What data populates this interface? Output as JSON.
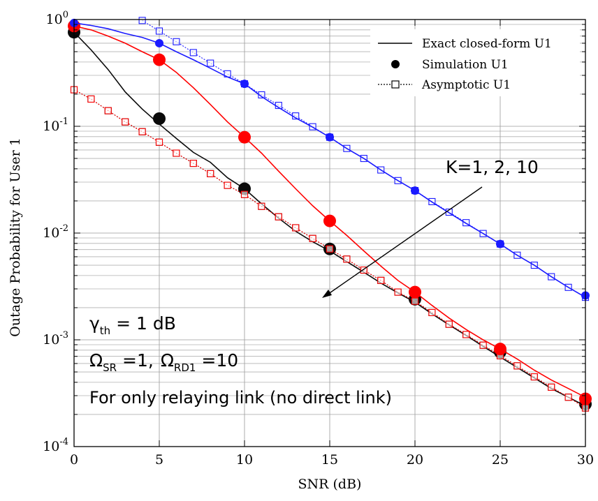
{
  "chart_data": {
    "type": "line",
    "xlabel": "SNR (dB)",
    "ylabel": "Outage Probability for User 1",
    "xlim": [
      0,
      30
    ],
    "ylim": [
      0.0001,
      1
    ],
    "yscale": "log",
    "grid": true,
    "legend_position": "top-right",
    "x_ticks": [
      0,
      5,
      10,
      15,
      20,
      25,
      30
    ],
    "y_ticks": [
      {
        "value": 1,
        "base": "10",
        "exp": "0"
      },
      {
        "value": 0.1,
        "base": "10",
        "exp": "-1"
      },
      {
        "value": 0.01,
        "base": "10",
        "exp": "-2"
      },
      {
        "value": 0.001,
        "base": "10",
        "exp": "-3"
      },
      {
        "value": 0.0001,
        "base": "10",
        "exp": "-4"
      }
    ],
    "legend": [
      {
        "label": "Exact closed-form U1",
        "style": "line"
      },
      {
        "label": "Simulation U1",
        "style": "dot"
      },
      {
        "label": "Asymptotic U1",
        "style": "square"
      }
    ],
    "annotations": {
      "k_label": "K=1, 2, 10",
      "gamma_sym": "γ",
      "gamma_sub": "th",
      "gamma_rest": " = 1 dB",
      "omega1_sym": "Ω",
      "omega1_sub": "SR",
      "omega1_rest": " =1,",
      "omega2_sym": "Ω",
      "omega2_sub": "RD1",
      "omega2_rest": " =10",
      "relay_note": "For only relaying link (no direct link)"
    },
    "series": [
      {
        "color": "#0a0a0a",
        "exact": {
          "x": [
            0,
            1,
            2,
            3,
            4,
            5,
            6,
            7,
            8,
            9,
            10,
            11,
            12,
            13,
            14,
            15,
            16,
            17,
            18,
            19,
            20,
            21,
            22,
            23,
            24,
            25,
            26,
            27,
            28,
            29,
            30
          ],
          "y": [
            0.76,
            0.52,
            0.34,
            0.21,
            0.145,
            0.105,
            0.077,
            0.057,
            0.046,
            0.033,
            0.026,
            0.0188,
            0.0138,
            0.0104,
            0.0083,
            0.0068,
            0.0054,
            0.0043,
            0.0034,
            0.00275,
            0.00225,
            0.00175,
            0.00138,
            0.0011,
            0.00087,
            0.00069,
            0.00055,
            0.00044,
            0.00035,
            0.00029,
            0.00024
          ]
        },
        "simulation": {
          "x": [
            0,
            5,
            10,
            15,
            20,
            25,
            30
          ],
          "y": [
            0.76,
            0.118,
            0.026,
            0.0071,
            0.0024,
            0.00077,
            0.00025
          ]
        },
        "asymptotic": {
          "x": [
            0,
            1,
            2,
            3,
            4,
            5,
            6,
            7,
            8,
            9,
            10,
            11,
            12,
            13,
            14,
            15,
            16,
            17,
            18,
            19,
            20,
            21,
            22,
            23,
            24,
            25,
            26,
            27,
            28,
            29,
            30
          ],
          "y": [
            0.22,
            0.18,
            0.14,
            0.11,
            0.089,
            0.071,
            0.056,
            0.045,
            0.036,
            0.028,
            0.023,
            0.0178,
            0.0142,
            0.0112,
            0.0089,
            0.0071,
            0.0057,
            0.0045,
            0.0036,
            0.0028,
            0.0023,
            0.0018,
            0.0014,
            0.00112,
            0.00089,
            0.00071,
            0.00057,
            0.00045,
            0.00036,
            0.00029,
            0.00023
          ]
        }
      },
      {
        "color": "#ff0000",
        "exact": {
          "x": [
            0,
            1,
            2,
            3,
            4,
            5,
            6,
            7,
            8,
            9,
            10,
            11,
            12,
            13,
            14,
            15,
            16,
            17,
            18,
            19,
            20,
            21,
            22,
            23,
            24,
            25,
            26,
            27,
            28,
            29,
            30
          ],
          "y": [
            0.87,
            0.8,
            0.7,
            0.6,
            0.5,
            0.42,
            0.32,
            0.23,
            0.16,
            0.11,
            0.079,
            0.056,
            0.038,
            0.026,
            0.018,
            0.013,
            0.0095,
            0.0068,
            0.0049,
            0.0036,
            0.0028,
            0.0021,
            0.0016,
            0.00125,
            0.001,
            0.00082,
            0.00066,
            0.00052,
            0.00042,
            0.00035,
            0.00029
          ]
        },
        "simulation": {
          "x": [
            0,
            5,
            10,
            15,
            20,
            25,
            30
          ],
          "y": [
            0.87,
            0.42,
            0.079,
            0.013,
            0.0028,
            0.00082,
            0.00028
          ]
        },
        "asymptotic": {
          "x": [
            0,
            1,
            2,
            3,
            4,
            5,
            6,
            7,
            8,
            9,
            10,
            11,
            12,
            13,
            14,
            15,
            16,
            17,
            18,
            19,
            20,
            21,
            22,
            23,
            24,
            25,
            26,
            27,
            28,
            29,
            30
          ],
          "y": [
            0.22,
            0.18,
            0.14,
            0.11,
            0.089,
            0.071,
            0.056,
            0.045,
            0.036,
            0.028,
            0.023,
            0.0178,
            0.0142,
            0.0112,
            0.0089,
            0.0071,
            0.0057,
            0.0045,
            0.0036,
            0.0028,
            0.0023,
            0.0018,
            0.0014,
            0.00112,
            0.00089,
            0.00071,
            0.00057,
            0.00045,
            0.00036,
            0.00029,
            0.00023
          ]
        }
      },
      {
        "color": "#1a1aff",
        "exact": {
          "x": [
            0,
            1,
            2,
            3,
            4,
            5,
            6,
            7,
            8,
            9,
            10,
            11,
            12,
            13,
            14,
            15,
            16,
            17,
            18,
            19,
            20,
            21,
            22,
            23,
            24,
            25,
            26,
            27,
            28,
            29,
            30
          ],
          "y": [
            0.93,
            0.88,
            0.82,
            0.74,
            0.68,
            0.6,
            0.5,
            0.42,
            0.35,
            0.29,
            0.25,
            0.19,
            0.15,
            0.12,
            0.098,
            0.079,
            0.062,
            0.05,
            0.039,
            0.031,
            0.025,
            0.0195,
            0.0155,
            0.0123,
            0.0099,
            0.0079,
            0.0062,
            0.005,
            0.0039,
            0.0031,
            0.0025
          ]
        },
        "simulation": {
          "x": [
            0,
            5,
            10,
            15,
            20,
            25,
            30
          ],
          "y": [
            0.93,
            0.6,
            0.25,
            0.079,
            0.025,
            0.0079,
            0.0026
          ]
        },
        "asymptotic": {
          "x": [
            4,
            5,
            6,
            7,
            8,
            9,
            10,
            11,
            12,
            13,
            14,
            15,
            16,
            17,
            18,
            19,
            20,
            21,
            22,
            23,
            24,
            25,
            26,
            27,
            28,
            29,
            30
          ],
          "y": [
            0.98,
            0.78,
            0.62,
            0.49,
            0.39,
            0.31,
            0.25,
            0.197,
            0.157,
            0.125,
            0.099,
            0.079,
            0.062,
            0.05,
            0.039,
            0.031,
            0.025,
            0.0197,
            0.0157,
            0.0125,
            0.0099,
            0.0079,
            0.0062,
            0.005,
            0.0039,
            0.0031,
            0.0025
          ]
        }
      }
    ]
  }
}
